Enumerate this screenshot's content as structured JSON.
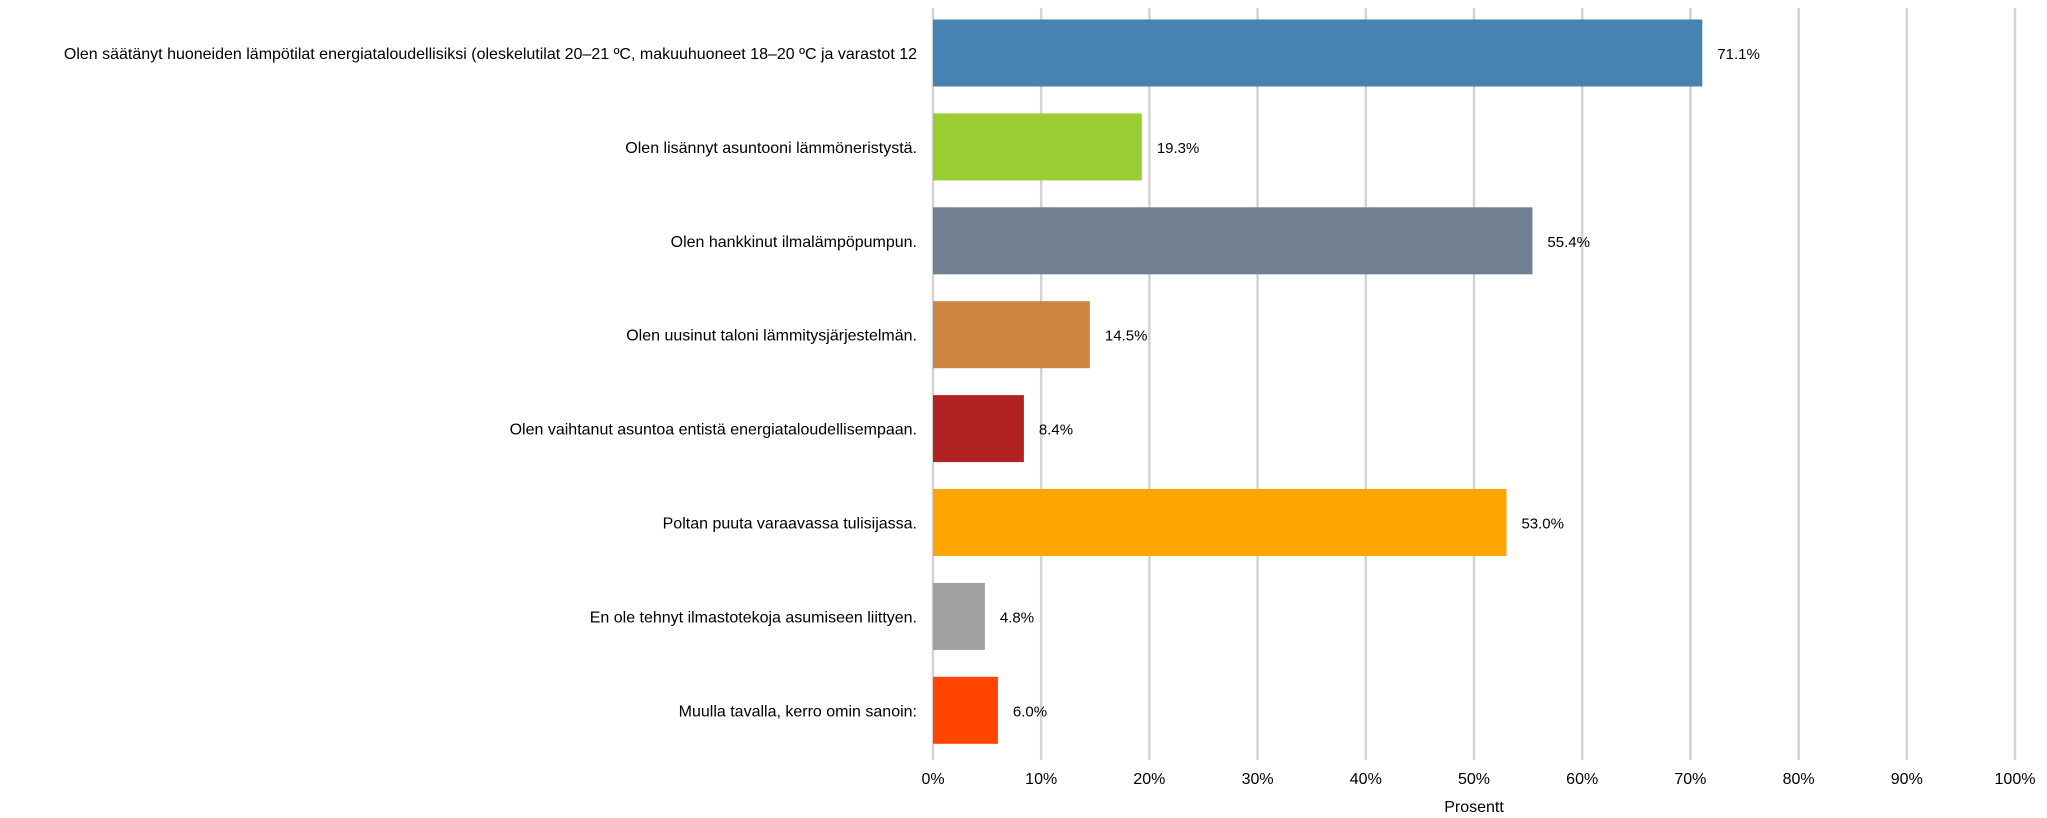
{
  "chart_data": {
    "type": "bar",
    "orientation": "horizontal",
    "xlabel": "Prosentt",
    "xlim": [
      0,
      100
    ],
    "x_ticks": [
      "0%",
      "10%",
      "20%",
      "30%",
      "40%",
      "50%",
      "60%",
      "70%",
      "80%",
      "90%",
      "100%"
    ],
    "grid": true,
    "categories": [
      "Olen säätänyt huoneiden lämpötilat energiataloudellisiksi (oleskelutilat 20–21 ºC, makuuhuoneet 18–20 ºC ja varastot 12",
      "Olen lisännyt asuntooni lämmöneristystä.",
      "Olen hankkinut ilmalämpöpumpun.",
      "Olen uusinut taloni lämmitysjärjestelmän.",
      "Olen vaihtanut asuntoa entistä energiataloudellisempaan.",
      "Poltan puuta varaavassa tulisijassa.",
      "En ole tehnyt ilmastotekoja asumiseen liittyen.",
      "Muulla tavalla, kerro omin sanoin:"
    ],
    "values": [
      71.1,
      19.3,
      55.4,
      14.5,
      8.4,
      53.0,
      4.8,
      6.0
    ],
    "value_labels": [
      "71.1%",
      "19.3%",
      "55.4%",
      "14.5%",
      "8.4%",
      "53.0%",
      "4.8%",
      "6.0%"
    ],
    "colors": [
      "#4682b4",
      "#9acd32",
      "#708090",
      "#cd853f",
      "#b22222",
      "#ffa500",
      "#a0a0a0",
      "#ff4500"
    ],
    "gridline_color": "#d3d3d3"
  }
}
